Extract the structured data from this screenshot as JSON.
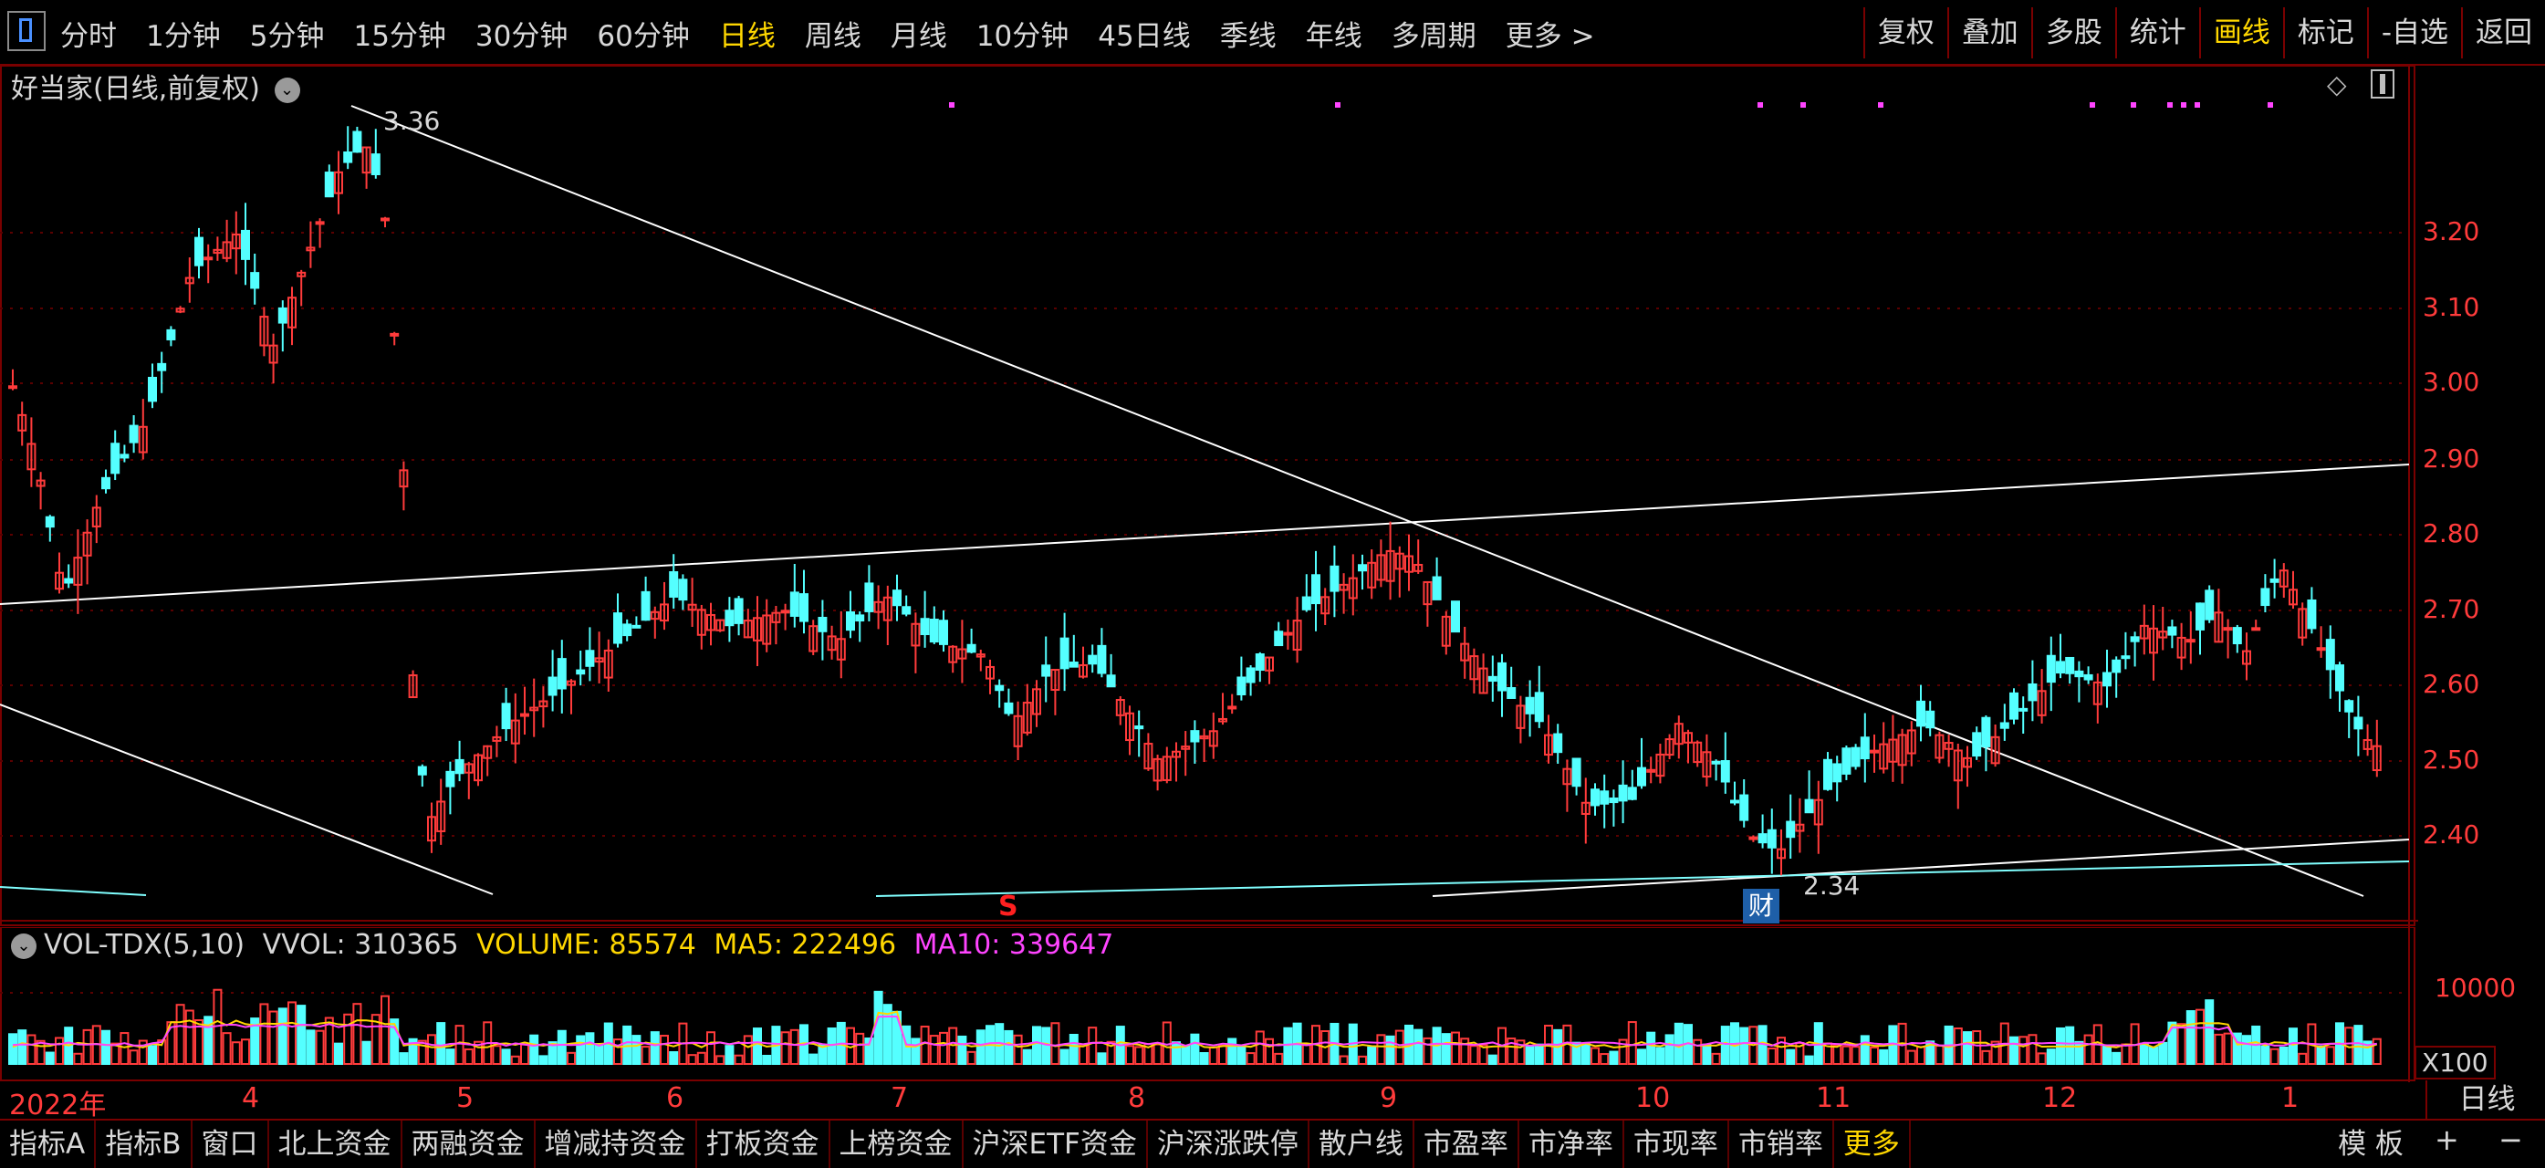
{
  "toolbar": {
    "left_tabs": [
      "分时",
      "1分钟",
      "5分钟",
      "15分钟",
      "30分钟",
      "60分钟",
      "日线",
      "周线",
      "月线",
      "10分钟",
      "45日线",
      "季线",
      "年线",
      "多周期",
      "更多 >"
    ],
    "active_left": "日线",
    "right_tabs": [
      "复权",
      "叠加",
      "多股",
      "统计",
      "画线",
      "标记",
      "-自选",
      "返回"
    ],
    "active_right": "画线"
  },
  "chart": {
    "title": "好当家(日线,前复权)",
    "high_label": "3.36",
    "low_label": "2.34",
    "cai_badge": "财",
    "s_marker": "S",
    "price_axis": [
      "3.20",
      "3.10",
      "3.00",
      "2.90",
      "2.80",
      "2.70",
      "2.60",
      "2.50",
      "2.40"
    ],
    "month_labels": [
      "2022年",
      "4",
      "5",
      "6",
      "7",
      "8",
      "9",
      "10",
      "11",
      "12",
      "1"
    ]
  },
  "volume": {
    "indicator": "VOL-TDX(5,10)",
    "vvol": "VVOL: 310365",
    "volume": "VOLUME: 85574",
    "ma5": "MA5: 222496",
    "ma10": "MA10: 339647",
    "axis_label": "10000",
    "unit": "X100"
  },
  "bottom": {
    "tabs": [
      "指标A",
      "指标B",
      "窗口",
      "北上资金",
      "两融资金",
      "增减持资金",
      "打板资金",
      "上榜资金",
      "沪深ETF资金",
      "沪深涨跌停",
      "散户线",
      "市盈率",
      "市净率",
      "市现率",
      "市销率",
      "更多"
    ],
    "active": "更多",
    "template": "模 板",
    "period": "日线",
    "plus": "+",
    "minus": "−"
  },
  "colors": {
    "up": "#ff3b3b",
    "down": "#54ffff",
    "active": "#ffd700",
    "border": "#7a0000",
    "ma5": "#ffd700",
    "ma10": "#ff44ff"
  }
}
